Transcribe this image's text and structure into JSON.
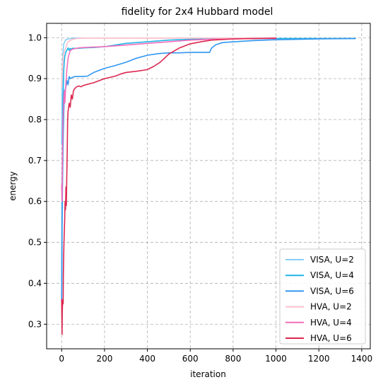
{
  "chart_data": {
    "type": "line",
    "title": "fidelity for 2x4 Hubbard model",
    "xlabel": "iteration",
    "ylabel": "energy",
    "xlim": [
      -70,
      1440
    ],
    "ylim": [
      0.24,
      1.035
    ],
    "xticks": [
      0,
      200,
      400,
      600,
      800,
      1000,
      1200,
      1400
    ],
    "yticks": [
      0.3,
      0.4,
      0.5,
      0.6,
      0.7,
      0.8,
      0.9,
      1.0
    ],
    "ytick_labels": [
      "0.3",
      "0.4",
      "0.5",
      "0.6",
      "0.7",
      "0.8",
      "0.9",
      "1.0"
    ],
    "grid": true,
    "legend_position": "lower-right",
    "series": [
      {
        "name": "VISA, U=2",
        "color": "#87cefa",
        "x": [
          0,
          2,
          4,
          6,
          8,
          10,
          14,
          20,
          30,
          45,
          60,
          100,
          200,
          400,
          1000
        ],
        "y": [
          0.74,
          0.86,
          0.93,
          0.96,
          0.975,
          0.985,
          0.99,
          0.995,
          0.997,
          0.998,
          0.999,
          0.999,
          0.999,
          0.999,
          0.999
        ]
      },
      {
        "name": "VISA, U=4",
        "color": "#1eb4e6",
        "x": [
          0,
          2,
          4,
          6,
          8,
          10,
          12,
          15,
          20,
          25,
          30,
          35,
          40,
          45,
          50,
          60,
          80,
          100,
          150,
          200,
          300,
          400,
          500,
          600,
          700,
          1000,
          1370
        ],
        "y": [
          0.36,
          0.6,
          0.75,
          0.84,
          0.88,
          0.92,
          0.94,
          0.955,
          0.965,
          0.97,
          0.975,
          0.969,
          0.974,
          0.971,
          0.974,
          0.974,
          0.974,
          0.975,
          0.976,
          0.978,
          0.986,
          0.99,
          0.994,
          0.996,
          0.997,
          0.998,
          0.998
        ]
      },
      {
        "name": "VISA, U=6",
        "color": "#3296f0",
        "x": [
          0,
          3,
          6,
          9,
          12,
          15,
          20,
          25,
          30,
          35,
          40,
          50,
          60,
          80,
          100,
          120,
          150,
          200,
          250,
          300,
          350,
          400,
          450,
          500,
          550,
          600,
          650,
          690,
          700,
          720,
          750,
          800,
          900,
          1000,
          1100,
          1200,
          1370
        ],
        "y": [
          0.36,
          0.6,
          0.72,
          0.8,
          0.85,
          0.87,
          0.88,
          0.895,
          0.885,
          0.905,
          0.9,
          0.903,
          0.905,
          0.905,
          0.905,
          0.906,
          0.915,
          0.925,
          0.932,
          0.94,
          0.95,
          0.957,
          0.961,
          0.963,
          0.963,
          0.964,
          0.964,
          0.964,
          0.975,
          0.983,
          0.988,
          0.99,
          0.993,
          0.995,
          0.996,
          0.997,
          0.998
        ]
      },
      {
        "name": "HVA, U=2",
        "color": "#ffc0cb",
        "x": [
          0,
          2,
          4,
          6,
          8,
          10,
          15,
          20,
          25,
          30,
          40,
          50,
          70,
          100,
          200,
          400,
          1000
        ],
        "y": [
          0.88,
          0.91,
          0.92,
          0.94,
          0.955,
          0.96,
          0.97,
          0.975,
          0.985,
          0.99,
          0.993,
          0.996,
          0.998,
          0.999,
          0.999,
          0.999,
          0.999
        ]
      },
      {
        "name": "HVA, U=4",
        "color": "#f46ebc",
        "x": [
          0,
          2,
          4,
          6,
          8,
          10,
          12,
          15,
          20,
          25,
          30,
          35,
          40,
          50,
          60,
          80,
          100,
          150,
          200,
          300,
          400,
          500,
          600,
          700,
          800,
          900,
          1000
        ],
        "y": [
          0.64,
          0.6,
          0.72,
          0.8,
          0.82,
          0.85,
          0.87,
          0.84,
          0.89,
          0.925,
          0.95,
          0.96,
          0.968,
          0.972,
          0.973,
          0.975,
          0.976,
          0.977,
          0.978,
          0.982,
          0.986,
          0.99,
          0.994,
          0.996,
          0.997,
          0.998,
          0.998
        ]
      },
      {
        "name": "HVA, U=6",
        "color": "#dc2850",
        "x": [
          0,
          2,
          3,
          5,
          7,
          8,
          10,
          12,
          14,
          16,
          18,
          20,
          22,
          24,
          26,
          28,
          30,
          35,
          40,
          45,
          50,
          55,
          60,
          70,
          80,
          90,
          100,
          120,
          150,
          200,
          250,
          280,
          300,
          350,
          400,
          430,
          460,
          480,
          500,
          550,
          600,
          650,
          700,
          800,
          900,
          1000
        ],
        "y": [
          0.36,
          0.275,
          0.33,
          0.36,
          0.35,
          0.42,
          0.48,
          0.52,
          0.55,
          0.6,
          0.58,
          0.635,
          0.59,
          0.66,
          0.72,
          0.8,
          0.82,
          0.84,
          0.83,
          0.86,
          0.85,
          0.87,
          0.875,
          0.88,
          0.882,
          0.88,
          0.883,
          0.886,
          0.89,
          0.9,
          0.906,
          0.912,
          0.915,
          0.918,
          0.922,
          0.93,
          0.94,
          0.95,
          0.96,
          0.975,
          0.985,
          0.99,
          0.994,
          0.997,
          0.998,
          0.999
        ]
      }
    ]
  }
}
